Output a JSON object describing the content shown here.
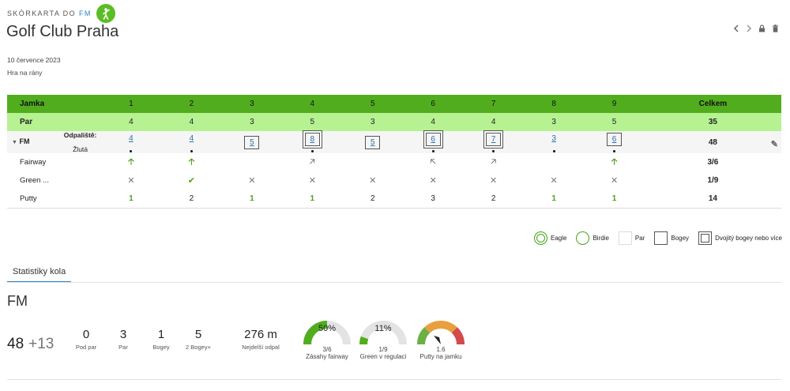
{
  "header": {
    "label": "SKÓRKARTA DO",
    "label_fm": "FM",
    "club": "Golf Club Praha",
    "date": "10 července 2023",
    "game_type": "Hra na rány"
  },
  "table": {
    "hole_label": "Jamka",
    "par_label": "Par",
    "total_label": "Celkem",
    "holes": [
      "1",
      "2",
      "3",
      "4",
      "5",
      "6",
      "7",
      "8",
      "9"
    ],
    "pars": [
      "4",
      "4",
      "3",
      "5",
      "3",
      "4",
      "4",
      "3",
      "5"
    ],
    "par_total": "35",
    "player": "FM",
    "tee_label": "Odpaliště:",
    "tee_value": "Žlutá",
    "scores": [
      "4",
      "4",
      "5",
      "8",
      "5",
      "6",
      "7",
      "3",
      "6"
    ],
    "score_total": "48",
    "fairway_label": "Fairway",
    "fairway_total": "3/6",
    "green_label": "Green ...",
    "green_total": "1/9",
    "putts_label": "Putty",
    "putts": [
      "1",
      "2",
      "1",
      "1",
      "2",
      "3",
      "2",
      "1",
      "1"
    ],
    "putts_total": "14"
  },
  "legend": {
    "eagle": "Eagle",
    "birdie": "Birdie",
    "par": "Par",
    "bogey": "Bogey",
    "double_bogey": "Dvojitý bogey nebo více"
  },
  "stats": {
    "tab": "Statistiky kola",
    "player": "FM",
    "score": "48",
    "rel": "+13",
    "under_par": "0",
    "under_par_label": "Pod par",
    "par": "3",
    "par_label": "Par",
    "bogey": "1",
    "bogey_label": "Bogey",
    "bogey2": "5",
    "bogey2_label": "2 Bogey+",
    "longest": "276 m",
    "longest_label": "Nejdelší odpal",
    "fairway_pct": "50%",
    "fairway_frac": "3/6",
    "fairway_label": "Zásahy fairway",
    "fairway_value": 0.5,
    "gir_pct": "11%",
    "gir_frac": "1/9",
    "gir_label": "Green v regulaci",
    "gir_value": 0.11,
    "putts_avg": "1.6",
    "putts_avg_label": "Putty na jamku"
  },
  "colors": {
    "green": "#51ad1e",
    "light_green": "#b7f292",
    "link": "#2d86c8"
  }
}
